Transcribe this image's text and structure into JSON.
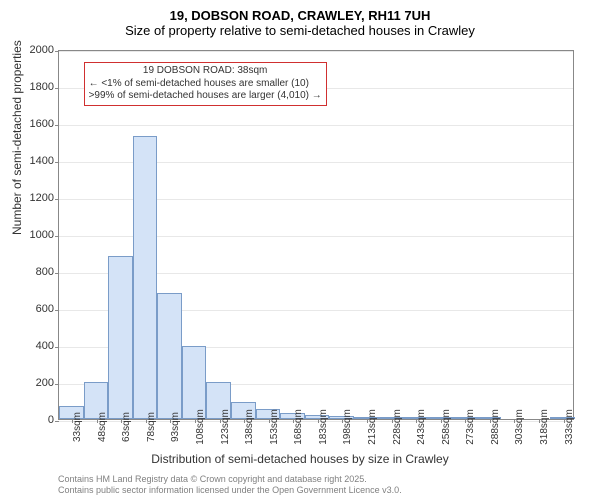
{
  "title": {
    "main": "19, DOBSON ROAD, CRAWLEY, RH11 7UH",
    "sub": "Size of property relative to semi-detached houses in Crawley"
  },
  "axes": {
    "ylabel": "Number of semi-detached properties",
    "xlabel": "Distribution of semi-detached houses by size in Crawley",
    "ylim": [
      0,
      2000
    ],
    "yticks": [
      0,
      200,
      400,
      600,
      800,
      1000,
      1200,
      1400,
      1600,
      1800,
      2000
    ],
    "xticks_labels": [
      "33sqm",
      "48sqm",
      "63sqm",
      "78sqm",
      "93sqm",
      "108sqm",
      "123sqm",
      "138sqm",
      "153sqm",
      "168sqm",
      "183sqm",
      "198sqm",
      "213sqm",
      "228sqm",
      "243sqm",
      "258sqm",
      "273sqm",
      "288sqm",
      "303sqm",
      "318sqm",
      "333sqm"
    ],
    "xticks_values": [
      33,
      48,
      63,
      78,
      93,
      108,
      123,
      138,
      153,
      168,
      183,
      198,
      213,
      228,
      243,
      258,
      273,
      288,
      303,
      318,
      333
    ],
    "xrange": [
      25,
      340
    ],
    "label_fontsize": 12,
    "tick_fontsize": 10
  },
  "histogram": {
    "type": "histogram",
    "bin_width": 15,
    "bins": [
      {
        "start": 25,
        "count": 70
      },
      {
        "start": 40,
        "count": 200
      },
      {
        "start": 55,
        "count": 880
      },
      {
        "start": 70,
        "count": 1530
      },
      {
        "start": 85,
        "count": 680
      },
      {
        "start": 100,
        "count": 395
      },
      {
        "start": 115,
        "count": 200
      },
      {
        "start": 130,
        "count": 90
      },
      {
        "start": 145,
        "count": 55
      },
      {
        "start": 160,
        "count": 30
      },
      {
        "start": 175,
        "count": 20
      },
      {
        "start": 190,
        "count": 15
      },
      {
        "start": 205,
        "count": 6
      },
      {
        "start": 220,
        "count": 4
      },
      {
        "start": 235,
        "count": 3
      },
      {
        "start": 250,
        "count": 2
      },
      {
        "start": 265,
        "count": 1
      },
      {
        "start": 280,
        "count": 1
      },
      {
        "start": 295,
        "count": 0
      },
      {
        "start": 310,
        "count": 0
      },
      {
        "start": 325,
        "count": 1
      }
    ],
    "bar_fill": "#d4e3f7",
    "bar_stroke": "#7a9cc8",
    "grid_color": "#e8e8e8"
  },
  "callout": {
    "headline": "19 DOBSON ROAD: 38sqm",
    "line1": "← <1% of semi-detached houses are smaller (10)",
    "line2": ">99% of semi-detached houses are larger (4,010) →",
    "border_color": "#d03030",
    "position_y_value": 1940,
    "position_x_value": 40
  },
  "attribution": {
    "line1": "Contains HM Land Registry data © Crown copyright and database right 2025.",
    "line2": "Contains public sector information licensed under the Open Government Licence v3.0."
  },
  "colors": {
    "background": "#ffffff",
    "axis": "#888888",
    "text": "#333333",
    "attribution_text": "#808080"
  }
}
